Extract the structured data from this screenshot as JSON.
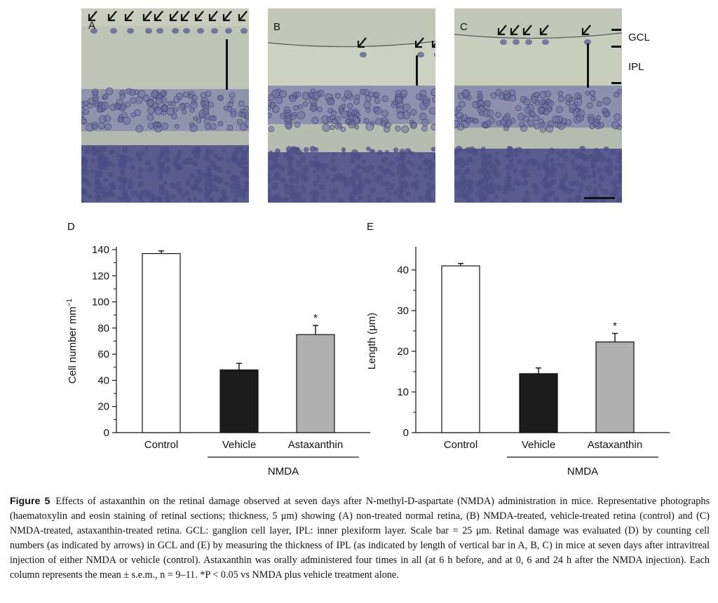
{
  "photos": {
    "panels": [
      {
        "letter": "A",
        "bg": "#c9cdbd",
        "cell": "#4a4e85"
      },
      {
        "letter": "B",
        "bg": "#cdd1c2",
        "cell": "#4d4f86"
      },
      {
        "letter": "C",
        "bg": "#c8cdbc",
        "cell": "#4b4f85"
      }
    ],
    "labels": {
      "gcl": "GCL",
      "ipl": "IPL"
    }
  },
  "chart_data": [
    {
      "type": "bar",
      "panel_label": "D",
      "categories": [
        "Control",
        "Vehicle",
        "Astaxanthin"
      ],
      "values": [
        137,
        48,
        75
      ],
      "errors": [
        2,
        5,
        7
      ],
      "colors": [
        "#ffffff",
        "#1c1c1c",
        "#b0b0b0"
      ],
      "ylabel": "Cell number mm",
      "ylabel_sup": "−1",
      "ylim": [
        0,
        140
      ],
      "yticks": [
        "0",
        "20",
        "40",
        "60",
        "80",
        "100",
        "120",
        "140"
      ],
      "group_label": "NMDA",
      "significance": [
        "",
        "",
        "*"
      ]
    },
    {
      "type": "bar",
      "panel_label": "E",
      "categories": [
        "Control",
        "Vehicle",
        "Astaxanthin"
      ],
      "values": [
        41,
        14.5,
        22.3
      ],
      "errors": [
        0.6,
        1.4,
        2.1
      ],
      "colors": [
        "#ffffff",
        "#1c1c1c",
        "#b0b0b0"
      ],
      "ylabel": "Length (μm)",
      "ylabel_sup": "",
      "ylim": [
        0,
        45
      ],
      "yticks": [
        "0",
        "10",
        "20",
        "30",
        "40"
      ],
      "group_label": "NMDA",
      "significance": [
        "",
        "",
        "*"
      ]
    }
  ],
  "caption": {
    "label": "Figure 5",
    "text": "Effects of astaxanthin on the retinal damage observed at seven days after N-methyl-D-aspartate (NMDA) administration in mice. Representative photographs (haematoxylin and eosin staining of retinal sections; thickness, 5 μm) showing (A) non-treated normal retina, (B) NMDA-treated, vehicle-treated retina (control) and (C) NMDA-treated, astaxanthin-treated retina. GCL: ganglion cell layer, IPL: inner plexiform layer. Scale bar = 25 μm. Retinal damage was evaluated (D) by counting cell numbers (as indicated by arrows) in GCL and (E) by measuring the thickness of IPL (as indicated by length of vertical bar in A, B, C) in mice at seven days after intravitreal injection of either NMDA or vehicle (control). Astaxanthin was orally administered four times in all (at 6 h before, and at 0, 6 and 24 h after the NMDA injection). Each column represents the mean ± s.e.m., n = 9–11. *P < 0.05 vs NMDA plus vehicle treatment alone."
  }
}
